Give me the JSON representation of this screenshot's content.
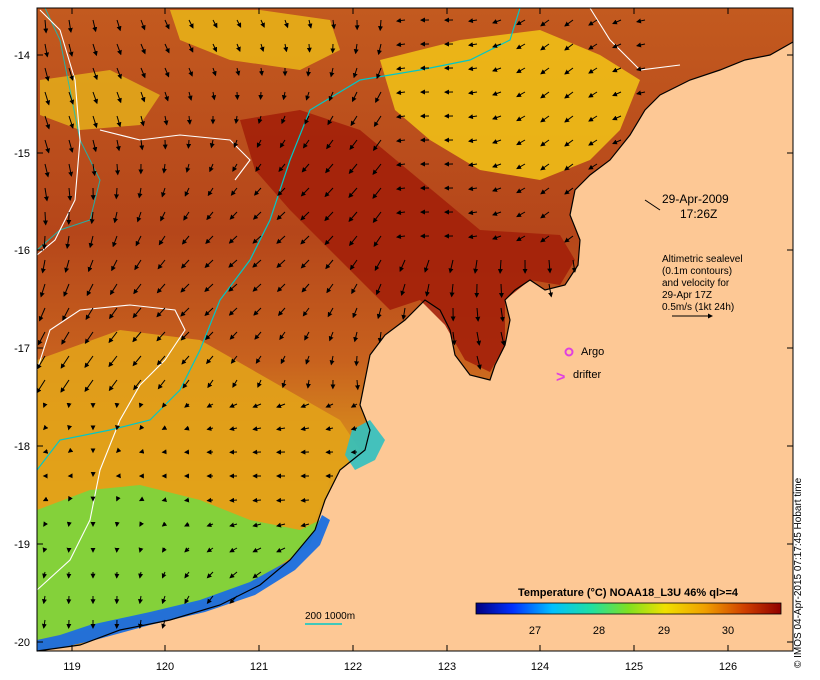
{
  "map": {
    "datetime_line1": "29-Apr-2009",
    "datetime_line2": "17:26Z",
    "legend_lines": [
      "Altimetric sealevel",
      "(0.1m contours)",
      "and velocity for",
      "29-Apr 17Z",
      "0.5m/s (1kt 24h)"
    ],
    "argo_label": "Argo",
    "drifter_label": "drifter",
    "drifter_glyph": ">",
    "bathymetry_label": "200  1000m",
    "colorbar_title": "Temperature (°C) NOAA18_L3U 46% ql>=4",
    "colorbar_ticks": [
      "27",
      "28",
      "29",
      "30"
    ],
    "lon_ticks": [
      "119",
      "120",
      "121",
      "122",
      "123",
      "124",
      "125",
      "126"
    ],
    "lat_ticks": [
      "-14",
      "-15",
      "-16",
      "-17",
      "-18",
      "-19",
      "-20"
    ],
    "credit": "© IMOS 04-Apr-2015 07:17:45 Hobart time",
    "colors": {
      "land": "#fdc895",
      "warm_sst": "#c0501c",
      "hot_sst": "#a3200a",
      "yellow_sst": "#f2c416",
      "green_sst": "#7ad63e",
      "contour_200m": "#00c8c8",
      "sealevel_contour": "#ffffff",
      "argo": "#e040e0",
      "drifter": "#e040e0"
    }
  }
}
